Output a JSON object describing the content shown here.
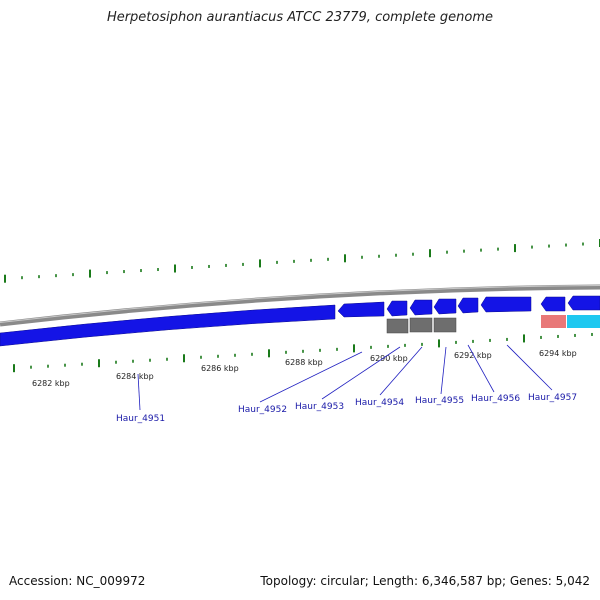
{
  "title": "Herpetosiphon aurantiacus ATCC 23779, complete genome",
  "footer": {
    "accession": "Accession: NC_009972",
    "summary": "Topology: circular; Length: 6,346,587 bp; Genes: 5,042"
  },
  "colors": {
    "background": "#ffffff",
    "backbone": "#8a8a8a",
    "forward_gene": "#1414e6",
    "gray_feature": "#6e6e6e",
    "pink_feature": "#e87878",
    "cyan_feature": "#1ec8f0",
    "tick": "#1a7a1a",
    "label_line": "#2020c0"
  },
  "scale_labels": [
    "6282 kbp",
    "6284 kbp",
    "6286 kbp",
    "6288 kbp",
    "6290 kbp",
    "6292 kbp",
    "6294 kbp"
  ],
  "genes": [
    {
      "label": "Haur_4951"
    },
    {
      "label": "Haur_4952"
    },
    {
      "label": "Haur_4953"
    },
    {
      "label": "Haur_4954"
    },
    {
      "label": "Haur_4955"
    },
    {
      "label": "Haur_4956"
    },
    {
      "label": "Haur_4957"
    }
  ]
}
